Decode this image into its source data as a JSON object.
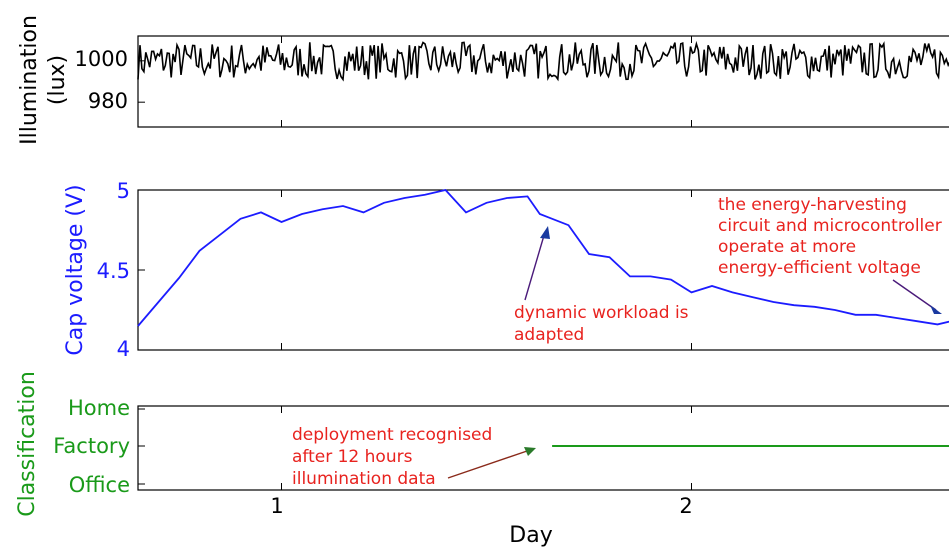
{
  "chart_data": [
    {
      "id": "illumination",
      "type": "line",
      "ylabel_line1": "Illumination",
      "ylabel_line2": "(lux)",
      "ylabel_color": "#000000",
      "series_color": "#000000",
      "xlim": [
        0.65,
        2.65
      ],
      "ylim": [
        968,
        1012
      ],
      "yticks": [
        980,
        1000
      ],
      "ytick_labels": [
        "980",
        "1000"
      ],
      "noise_center": 1000,
      "noise_amplitude": 9
    },
    {
      "id": "cap-voltage",
      "type": "line",
      "ylabel": "Cap voltage (V)",
      "ylabel_color": "#1c1cff",
      "series_color": "#1c1cff",
      "xlim": [
        0.65,
        2.65
      ],
      "ylim": [
        4.0,
        5.0
      ],
      "yticks": [
        4,
        4.5,
        5
      ],
      "ytick_labels": [
        "4",
        "4.5",
        "5"
      ],
      "x": [
        0.65,
        0.7,
        0.75,
        0.8,
        0.85,
        0.9,
        0.95,
        1.0,
        1.05,
        1.1,
        1.15,
        1.2,
        1.25,
        1.3,
        1.35,
        1.4,
        1.45,
        1.5,
        1.55,
        1.6,
        1.63,
        1.65,
        1.7,
        1.75,
        1.8,
        1.85,
        1.9,
        1.95,
        2.0,
        2.05,
        2.1,
        2.15,
        2.2,
        2.25,
        2.3,
        2.35,
        2.4,
        2.45,
        2.5,
        2.55,
        2.6,
        2.65
      ],
      "y": [
        4.15,
        4.3,
        4.45,
        4.62,
        4.72,
        4.82,
        4.86,
        4.8,
        4.85,
        4.88,
        4.9,
        4.86,
        4.92,
        4.95,
        4.97,
        5.0,
        4.86,
        4.92,
        4.95,
        4.96,
        4.85,
        4.83,
        4.78,
        4.6,
        4.58,
        4.46,
        4.46,
        4.44,
        4.36,
        4.4,
        4.36,
        4.33,
        4.3,
        4.28,
        4.27,
        4.25,
        4.22,
        4.22,
        4.2,
        4.18,
        4.16,
        4.19
      ]
    },
    {
      "id": "classification",
      "type": "line",
      "ylabel": "Classification",
      "ylabel_color": "#1a9a1a",
      "series_color": "#1a9a1a",
      "xlim": [
        0.65,
        2.65
      ],
      "categories": [
        "Office",
        "Factory",
        "Home"
      ],
      "ytick_labels": [
        "Home",
        "Factory",
        "Office"
      ],
      "x": [
        1.66,
        2.65
      ],
      "y": [
        "Factory",
        "Factory"
      ]
    }
  ],
  "shared_x": {
    "xlabel": "Day",
    "xticks": [
      1,
      2
    ],
    "xtick_labels": [
      "1",
      "2"
    ]
  },
  "annotations": {
    "dynamic_workload": [
      "dynamic workload is",
      "adapted"
    ],
    "energy_harvesting": [
      "the energy-harvesting",
      "circuit and microcontroller",
      "operate at more",
      "energy-efficient voltage"
    ],
    "deployment": [
      "deployment recognised",
      "after 12 hours",
      "illumination data"
    ]
  },
  "colors": {
    "annotation": "#e8231f",
    "arrow_dark": "#4a1a7a",
    "arrow_blue": "#1a3aa0",
    "arrow_green": "#2a7a2a"
  }
}
